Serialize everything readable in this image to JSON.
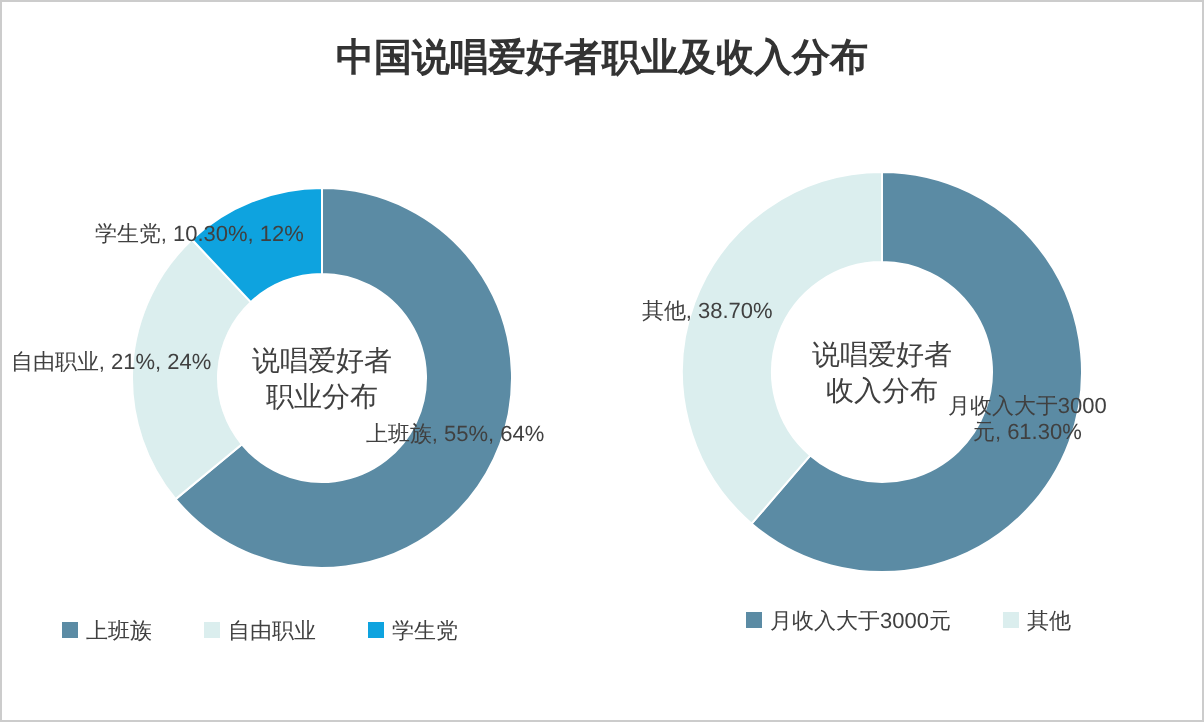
{
  "chart_data": [
    {
      "type": "donut",
      "title": "中国说唱爱好者职业及收入分布",
      "annotations": [
        "说唱爱好者",
        "职业分布"
      ],
      "categories": [
        "上班族",
        "自由职业",
        "学生党"
      ],
      "values": [
        64,
        24,
        12
      ],
      "colors": [
        "#5b8ba4",
        "#dbeeee",
        "#0ea3df"
      ],
      "value_labels": [
        "上班族, 55%, 64%",
        "自由职业, 21%, 24%",
        "学生党, 10.30%, 12%"
      ],
      "legend": "bottom"
    },
    {
      "type": "donut",
      "annotations": [
        "说唱爱好者",
        "收入分布"
      ],
      "categories": [
        "月收入大于3000元",
        "其他"
      ],
      "values": [
        61.3,
        38.7
      ],
      "colors": [
        "#5b8ba4",
        "#dbeeee"
      ],
      "value_labels": [
        "月收入大于3000元, 61.30%",
        "其他, 38.70%"
      ],
      "legend": "bottom"
    }
  ]
}
